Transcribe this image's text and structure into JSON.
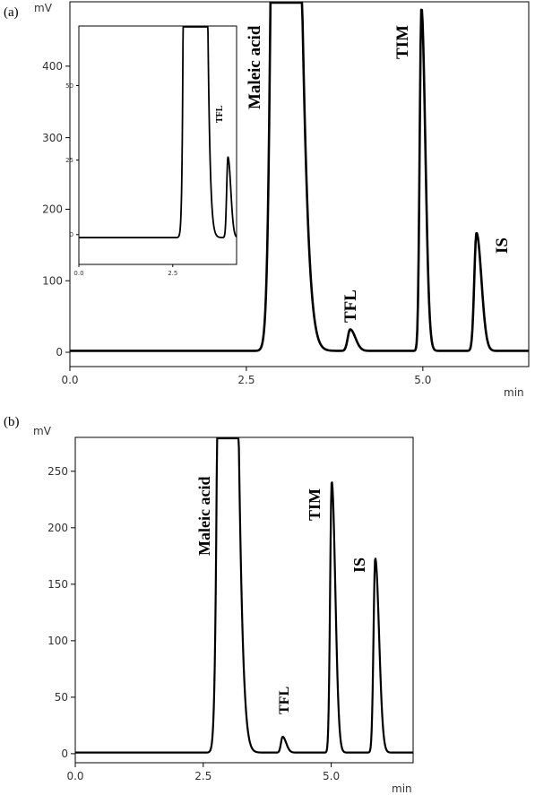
{
  "chart_data": [
    {
      "type": "line",
      "panel_label": "(a)",
      "ylabel": "mV",
      "xlabel": "min",
      "xlim": [
        0.0,
        6.5
      ],
      "ylim": [
        -20,
        490
      ],
      "x_ticks": [
        0.0,
        2.5,
        5.0
      ],
      "x_tick_labels": [
        "0.0",
        "2.5",
        "5.0"
      ],
      "y_ticks": [
        0,
        100,
        200,
        300,
        400
      ],
      "y_tick_labels": [
        "0",
        "100",
        "200",
        "300",
        "400"
      ],
      "baseline": 2,
      "peaks": [
        {
          "label": "Maleic acid",
          "rt": 2.98,
          "height": 2600,
          "width": 0.17
        },
        {
          "label": "TFL",
          "rt": 3.97,
          "height": 30,
          "width": 0.075
        },
        {
          "label": "TIM",
          "rt": 4.98,
          "height": 480,
          "width": 0.055
        },
        {
          "label": "IS",
          "rt": 5.76,
          "height": 165,
          "width": 0.07
        }
      ],
      "annotations": [
        "Maleic acid",
        "TFL",
        "TIM",
        "IS"
      ],
      "inset": {
        "xlim": [
          0.0,
          4.2
        ],
        "ylim": [
          -10,
          70
        ],
        "x_ticks": [
          0.0,
          2.5
        ],
        "x_tick_labels": [
          "0.0",
          "2.5"
        ],
        "y_ticks": [
          0,
          25,
          50
        ],
        "y_tick_labels": [
          "0",
          "25",
          "50"
        ],
        "baseline": -1,
        "peaks": [
          {
            "label": "Maleic acid",
            "rt": 2.98,
            "height": 2600,
            "width": 0.17
          },
          {
            "label": "TFL",
            "rt": 3.97,
            "height": 27,
            "width": 0.075
          }
        ],
        "annotations": [
          "TFL"
        ]
      }
    },
    {
      "type": "line",
      "panel_label": "(b)",
      "ylabel": "mV",
      "xlabel": "min",
      "xlim": [
        0.0,
        6.6
      ],
      "ylim": [
        -8,
        280
      ],
      "x_ticks": [
        0.0,
        2.5,
        5.0
      ],
      "x_tick_labels": [
        "0.0",
        "2.5",
        "5.0"
      ],
      "y_ticks": [
        0,
        50,
        100,
        150,
        200,
        250
      ],
      "y_tick_labels": [
        "0",
        "50",
        "100",
        "150",
        "200",
        "250"
      ],
      "baseline": 1,
      "peaks": [
        {
          "label": "Maleic acid",
          "rt": 2.9,
          "height": 1500,
          "width": 0.16
        },
        {
          "label": "TFL",
          "rt": 4.05,
          "height": 14,
          "width": 0.07
        },
        {
          "label": "TIM",
          "rt": 5.01,
          "height": 240,
          "width": 0.07
        },
        {
          "label": "IS",
          "rt": 5.86,
          "height": 172,
          "width": 0.075
        }
      ],
      "annotations": [
        "Maleic acid",
        "TFL",
        "TIM",
        "IS"
      ]
    }
  ]
}
